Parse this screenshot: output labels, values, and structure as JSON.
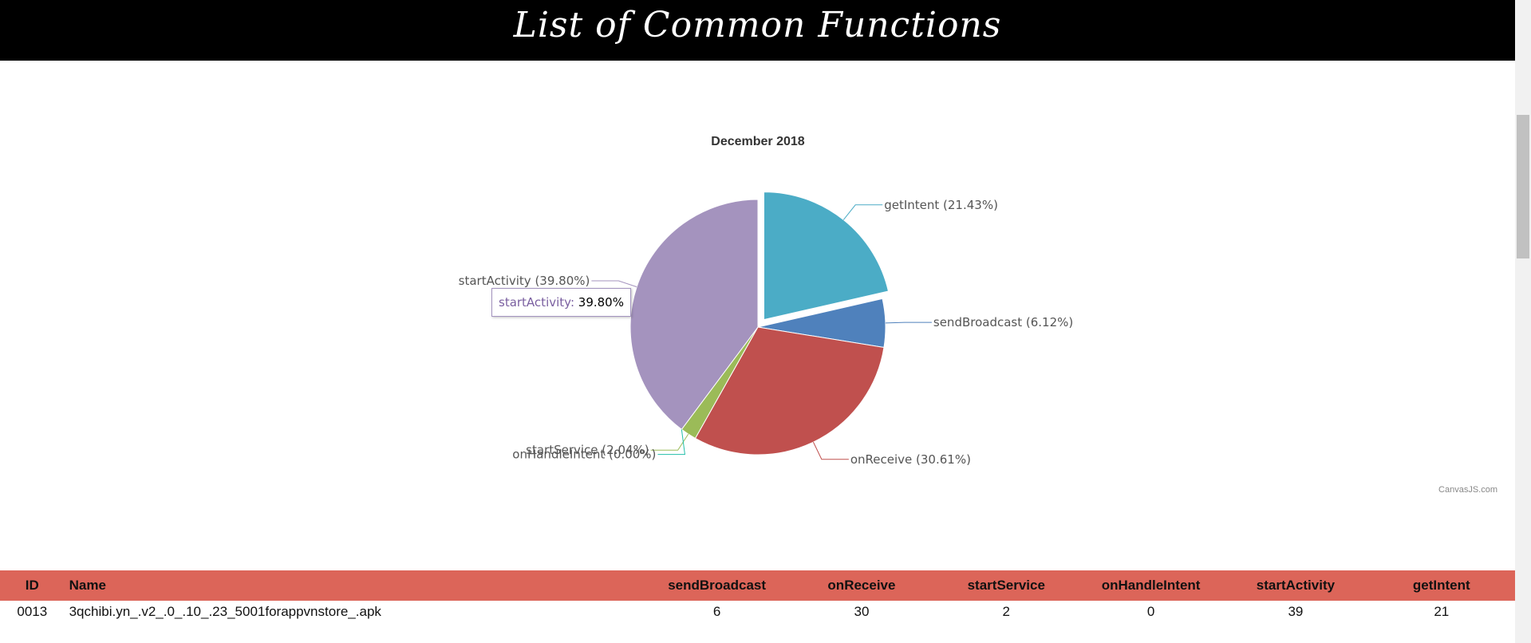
{
  "header": {
    "title": "List of Common Functions"
  },
  "chart_data": {
    "type": "pie",
    "title": "December 2018",
    "credit": "CanvasJS.com",
    "slices": [
      {
        "label": "getIntent",
        "value": 21.43,
        "display": "getIntent (21.43%)",
        "color": "#4bacc6",
        "exploded": true
      },
      {
        "label": "sendBroadcast",
        "value": 6.12,
        "display": "sendBroadcast (6.12%)",
        "color": "#4f81bc",
        "exploded": false
      },
      {
        "label": "onReceive",
        "value": 30.61,
        "display": "onReceive (30.61%)",
        "color": "#c0504e",
        "exploded": false
      },
      {
        "label": "startService",
        "value": 2.04,
        "display": "startService (2.04%)",
        "color": "#9bbb58",
        "exploded": false
      },
      {
        "label": "onHandleIntent",
        "value": 0.0,
        "display": "onHandleIntent (0.00%)",
        "color": "#23bfaa",
        "exploded": false
      },
      {
        "label": "startActivity",
        "value": 39.8,
        "display": "startActivity (39.80%)",
        "color": "#a493be",
        "exploded": false
      }
    ],
    "tooltip": {
      "name": "startActivity:",
      "value": "39.80%"
    }
  },
  "table": {
    "headers": [
      "ID",
      "Name",
      "sendBroadcast",
      "onReceive",
      "startService",
      "onHandleIntent",
      "startActivity",
      "getIntent"
    ],
    "rows": [
      [
        "0013",
        "3qchibi.yn_.v2_.0_.10_.23_5001forappvnstore_.apk",
        "6",
        "30",
        "2",
        "0",
        "39",
        "21"
      ]
    ]
  }
}
